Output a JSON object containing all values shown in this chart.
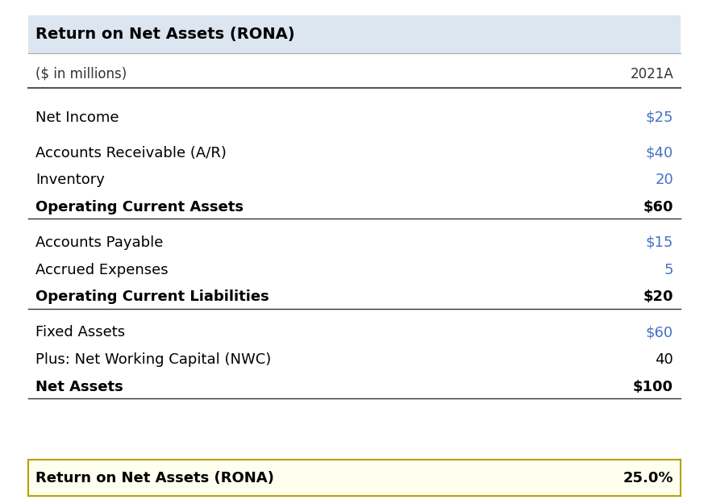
{
  "title": "Return on Net Assets (RONA)",
  "subtitle_left": "($ in millions)",
  "subtitle_right": "2021A",
  "header_bg": "#dce6f1",
  "header_text_color": "#000000",
  "value_blue": "#4472C4",
  "rows": [
    {
      "label": "Net Income",
      "value": "$25",
      "bold": false,
      "blue_value": true,
      "top_space": true,
      "underline": false
    },
    {
      "label": "",
      "value": "",
      "bold": false,
      "blue_value": false,
      "top_space": false,
      "underline": false
    },
    {
      "label": "Accounts Receivable (A/R)",
      "value": "$40",
      "bold": false,
      "blue_value": true,
      "top_space": true,
      "underline": false
    },
    {
      "label": "Inventory",
      "value": "20",
      "bold": false,
      "blue_value": true,
      "top_space": false,
      "underline": false
    },
    {
      "label": "Operating Current Assets",
      "value": "$60",
      "bold": true,
      "blue_value": false,
      "top_space": false,
      "underline": true
    },
    {
      "label": "",
      "value": "",
      "bold": false,
      "blue_value": false,
      "top_space": false,
      "underline": false
    },
    {
      "label": "Accounts Payable",
      "value": "$15",
      "bold": false,
      "blue_value": true,
      "top_space": true,
      "underline": false
    },
    {
      "label": "Accrued Expenses",
      "value": "5",
      "bold": false,
      "blue_value": true,
      "top_space": false,
      "underline": false
    },
    {
      "label": "Operating Current Liabilities",
      "value": "$20",
      "bold": true,
      "blue_value": false,
      "top_space": false,
      "underline": true
    },
    {
      "label": "",
      "value": "",
      "bold": false,
      "blue_value": false,
      "top_space": false,
      "underline": false
    },
    {
      "label": "Fixed Assets",
      "value": "$60",
      "bold": false,
      "blue_value": true,
      "top_space": true,
      "underline": false
    },
    {
      "label": "Plus: Net Working Capital (NWC)",
      "value": "40",
      "bold": false,
      "blue_value": false,
      "top_space": false,
      "underline": false
    },
    {
      "label": "Net Assets",
      "value": "$100",
      "bold": true,
      "blue_value": false,
      "top_space": false,
      "underline": true
    }
  ],
  "footer_label": "Return on Net Assets (RONA)",
  "footer_value": "25.0%",
  "footer_bg": "#fffff0",
  "footer_border": "#b8a000",
  "bg_color": "#ffffff",
  "font_size": 13,
  "title_font_size": 14
}
